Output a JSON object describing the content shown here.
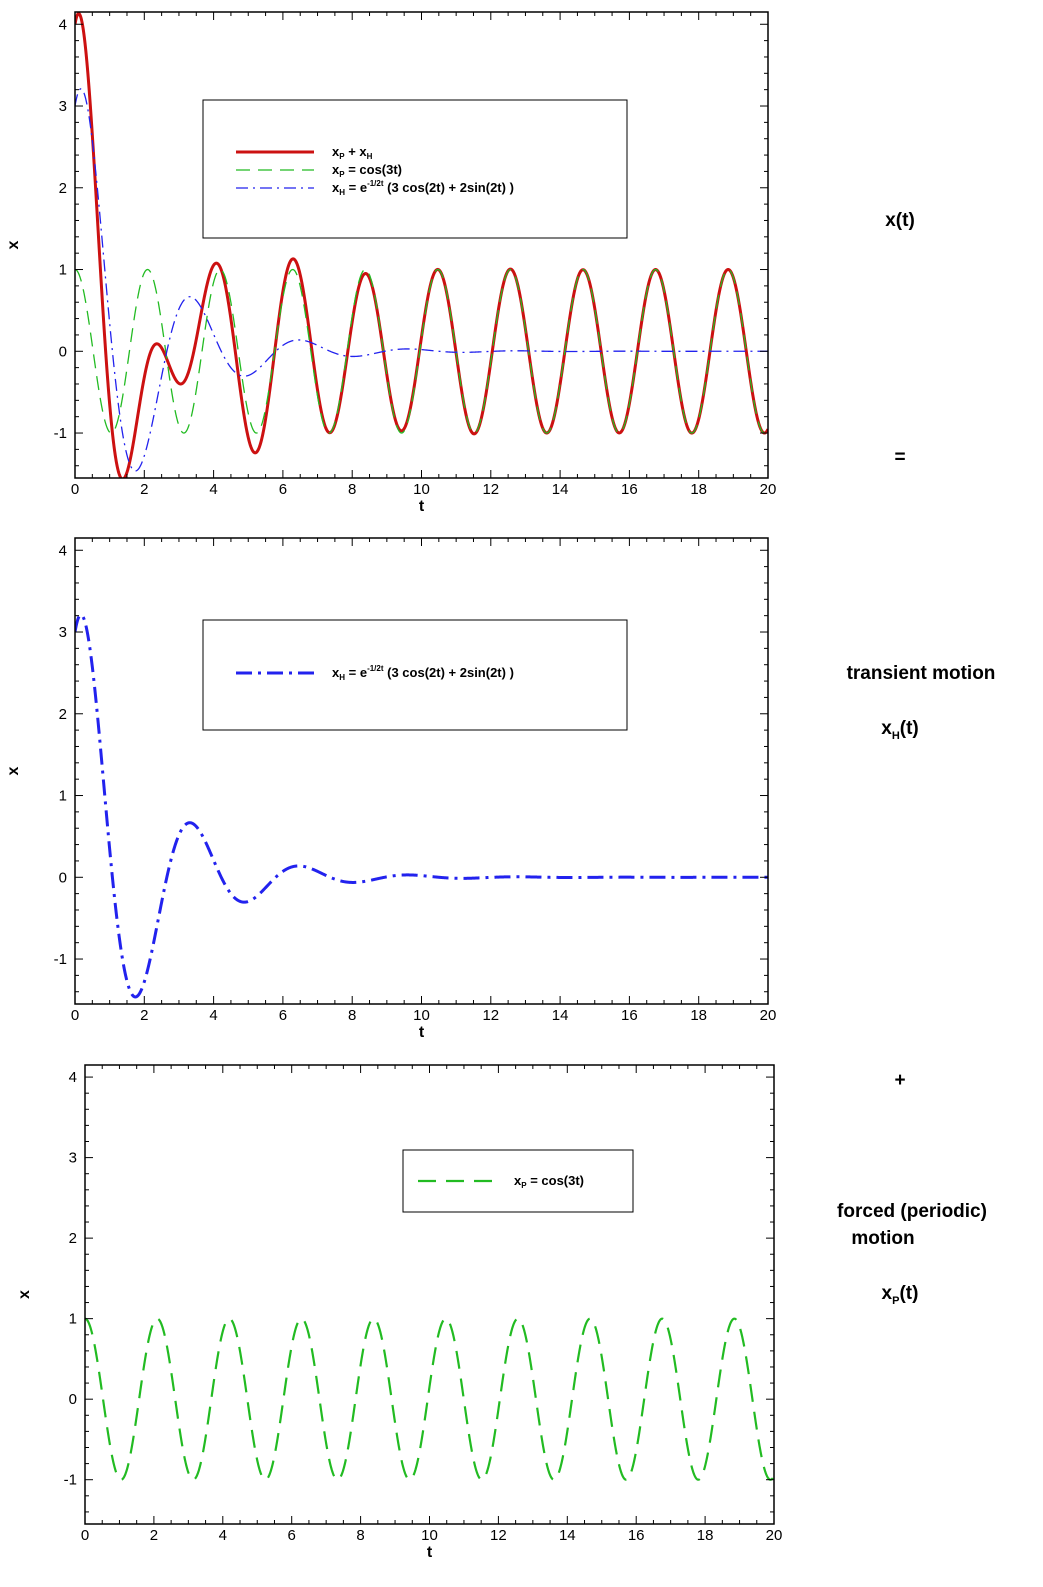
{
  "chart_data": [
    {
      "type": "line",
      "xlabel": "t",
      "ylabel": "x",
      "xlim": [
        0,
        20
      ],
      "ylim": [
        -1.55,
        4.15
      ],
      "x_ticks": [
        0,
        2,
        4,
        6,
        8,
        10,
        12,
        14,
        16,
        18,
        20
      ],
      "y_ticks": [
        -1,
        0,
        1,
        2,
        3,
        4
      ],
      "legend_position": "top-center",
      "series": [
        {
          "id": "sum",
          "legend": {
            "main": "x",
            "sub": "P",
            "rest": " + x",
            "sub2": "H",
            "tail": "",
            "sup": ""
          },
          "formula": "cos(3t)+e^(-t/2)(3cos(2t)+2sin(2t))",
          "color": "#cc1111",
          "style": "solid",
          "width": 3
        },
        {
          "id": "xp",
          "legend": {
            "main": "x",
            "sub": "P",
            "rest": " = cos(3t)",
            "sub2": "",
            "tail": "",
            "sup": ""
          },
          "formula": "cos(3t)",
          "color": "#22bb22",
          "style": "dashed",
          "width": 1.3
        },
        {
          "id": "xh",
          "legend": {
            "main": "x",
            "sub": "H",
            "rest": " =  e",
            "sup": "-1/2t",
            "sub2": "",
            "tail": " (3 cos(2t) + 2sin(2t) )"
          },
          "formula": "e^(-t/2)(3cos(2t)+2sin(2t))",
          "color": "#2222ee",
          "style": "dashdot",
          "width": 1.3
        }
      ]
    },
    {
      "type": "line",
      "xlabel": "t",
      "ylabel": "x",
      "xlim": [
        0,
        20
      ],
      "ylim": [
        -1.55,
        4.15
      ],
      "x_ticks": [
        0,
        2,
        4,
        6,
        8,
        10,
        12,
        14,
        16,
        18,
        20
      ],
      "y_ticks": [
        -1,
        0,
        1,
        2,
        3,
        4
      ],
      "legend_position": "top-center",
      "series": [
        {
          "id": "xh",
          "legend": {
            "main": "x",
            "sub": "H",
            "rest": " =  e",
            "sup": "-1/2t",
            "sub2": "",
            "tail": " (3 cos(2t) + 2sin(2t) )"
          },
          "formula": "e^(-t/2)(3cos(2t)+2sin(2t))",
          "color": "#2222ee",
          "style": "dashdot",
          "width": 3
        }
      ]
    },
    {
      "type": "line",
      "xlabel": "t",
      "ylabel": "x",
      "xlim": [
        0,
        20
      ],
      "ylim": [
        -1.55,
        4.15
      ],
      "x_ticks": [
        0,
        2,
        4,
        6,
        8,
        10,
        12,
        14,
        16,
        18,
        20
      ],
      "y_ticks": [
        -1,
        0,
        1,
        2,
        3,
        4
      ],
      "legend_position": "top-right",
      "series": [
        {
          "id": "xp",
          "legend": {
            "main": "x",
            "sub": "P",
            "rest": " = cos(3t)",
            "sub2": "",
            "tail": "",
            "sup": ""
          },
          "formula": "cos(3t)",
          "color": "#22bb22",
          "style": "dashed",
          "width": 2.2
        }
      ]
    }
  ],
  "annotations": {
    "total": {
      "main": "x(t)",
      "sub": ""
    },
    "equals": "=",
    "transient_label": "transient motion",
    "transient": {
      "main": "x",
      "sub": "H",
      "rest": "(t)"
    },
    "plus": "+",
    "forced_line1": "forced (periodic)",
    "forced_line2": "motion",
    "forced": {
      "main": "x",
      "sub": "P",
      "rest": "(t)"
    }
  }
}
